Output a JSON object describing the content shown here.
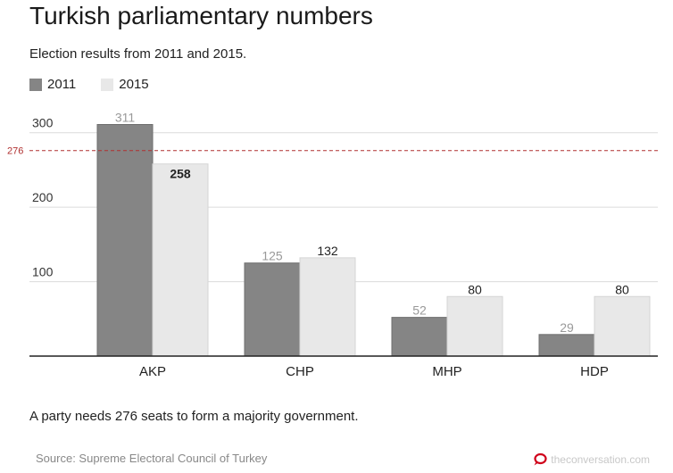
{
  "header": {
    "title": "Turkish parliamentary numbers",
    "subtitle": "Election results from 2011 and 2015."
  },
  "legend": [
    {
      "label": "2011",
      "color": "#858585"
    },
    {
      "label": "2015",
      "color": "#e8e8e8"
    }
  ],
  "footer": {
    "note": "A party needs 276 seats to form a majority government.",
    "source": "Source: Supreme Electoral Council of Turkey",
    "brand": "theconversation.com",
    "brand_icon": "speech-bubble-icon",
    "brand_color": "#d0021b"
  },
  "chart_data": {
    "type": "bar",
    "categories": [
      "AKP",
      "CHP",
      "MHP",
      "HDP"
    ],
    "series": [
      {
        "name": "2011",
        "values": [
          311,
          125,
          52,
          29
        ],
        "color": "#858585"
      },
      {
        "name": "2015",
        "values": [
          258,
          132,
          80,
          80
        ],
        "color": "#e8e8e8"
      }
    ],
    "ylim": [
      0,
      320
    ],
    "yticks": [
      100,
      200,
      300
    ],
    "grid": true,
    "legend_position": "top-left",
    "reference_line": {
      "value": 276,
      "label": "276",
      "color": "#b03030"
    }
  }
}
